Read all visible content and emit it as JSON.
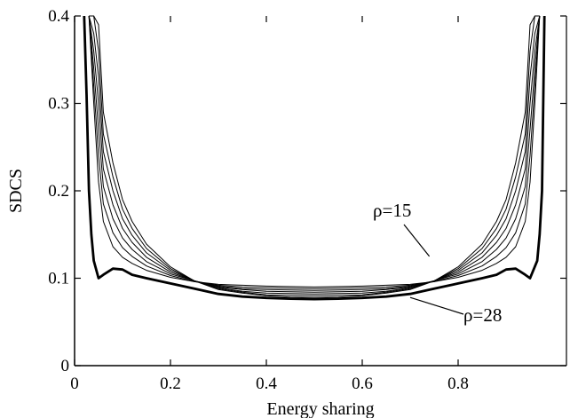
{
  "chart_data": {
    "type": "line",
    "title": "",
    "xlabel": "Energy sharing",
    "ylabel": "SDCS",
    "xlim": [
      0,
      1
    ],
    "ylim": [
      0,
      0.4
    ],
    "xticks": [
      0,
      0.2,
      0.4,
      0.6,
      0.8
    ],
    "xtick_labels": [
      "0",
      "0.2",
      "0.4",
      "0.6",
      "0.8"
    ],
    "yticks": [
      0,
      0.1,
      0.2,
      0.3,
      0.4
    ],
    "ytick_labels": [
      "0",
      "0.1",
      "0.2",
      "0.3",
      "0.4"
    ],
    "grid": false,
    "annotations": [
      {
        "text": "ρ=15",
        "points_to": {
          "x": 0.74,
          "y": 0.125
        }
      },
      {
        "text": "ρ=28",
        "points_to": {
          "x": 0.7,
          "y": 0.078
        }
      }
    ],
    "series": [
      {
        "x": [
          0.03,
          0.04,
          0.05,
          0.06,
          0.08,
          0.1,
          0.12,
          0.15,
          0.2,
          0.25,
          0.3,
          0.35,
          0.4,
          0.45,
          0.5,
          0.55,
          0.6,
          0.65,
          0.7,
          0.75,
          0.8,
          0.85,
          0.88,
          0.9,
          0.92,
          0.94,
          0.95,
          0.96,
          0.97
        ],
        "y": [
          0.4,
          0.3,
          0.21,
          0.165,
          0.136,
          0.124,
          0.117,
          0.109,
          0.101,
          0.096,
          0.093,
          0.092,
          0.091,
          0.0905,
          0.09,
          0.0905,
          0.091,
          0.092,
          0.093,
          0.096,
          0.101,
          0.109,
          0.117,
          0.124,
          0.136,
          0.165,
          0.21,
          0.3,
          0.4
        ]
      },
      {
        "x": [
          0.03,
          0.04,
          0.05,
          0.06,
          0.08,
          0.1,
          0.12,
          0.15,
          0.2,
          0.25,
          0.3,
          0.35,
          0.4,
          0.45,
          0.5,
          0.55,
          0.6,
          0.65,
          0.7,
          0.75,
          0.8,
          0.85,
          0.88,
          0.9,
          0.92,
          0.94,
          0.95,
          0.96,
          0.97
        ],
        "y": [
          0.4,
          0.32,
          0.24,
          0.185,
          0.152,
          0.135,
          0.125,
          0.114,
          0.103,
          0.096,
          0.092,
          0.09,
          0.089,
          0.0885,
          0.088,
          0.0885,
          0.089,
          0.09,
          0.092,
          0.096,
          0.103,
          0.114,
          0.125,
          0.135,
          0.152,
          0.185,
          0.24,
          0.32,
          0.4
        ]
      },
      {
        "x": [
          0.03,
          0.04,
          0.05,
          0.06,
          0.08,
          0.1,
          0.12,
          0.15,
          0.2,
          0.25,
          0.3,
          0.35,
          0.4,
          0.45,
          0.5,
          0.55,
          0.6,
          0.65,
          0.7,
          0.75,
          0.8,
          0.85,
          0.88,
          0.9,
          0.92,
          0.94,
          0.95,
          0.96,
          0.97
        ],
        "y": [
          0.4,
          0.34,
          0.27,
          0.205,
          0.168,
          0.146,
          0.133,
          0.119,
          0.105,
          0.097,
          0.091,
          0.088,
          0.087,
          0.0865,
          0.086,
          0.0865,
          0.087,
          0.088,
          0.091,
          0.097,
          0.105,
          0.119,
          0.133,
          0.146,
          0.168,
          0.205,
          0.27,
          0.34,
          0.4
        ]
      },
      {
        "x": [
          0.03,
          0.04,
          0.05,
          0.06,
          0.08,
          0.1,
          0.12,
          0.15,
          0.2,
          0.25,
          0.3,
          0.35,
          0.4,
          0.45,
          0.5,
          0.55,
          0.6,
          0.65,
          0.7,
          0.75,
          0.8,
          0.85,
          0.88,
          0.9,
          0.92,
          0.94,
          0.95,
          0.96,
          0.97
        ],
        "y": [
          0.4,
          0.36,
          0.3,
          0.225,
          0.184,
          0.157,
          0.141,
          0.124,
          0.107,
          0.097,
          0.09,
          0.087,
          0.085,
          0.0845,
          0.084,
          0.0845,
          0.085,
          0.087,
          0.09,
          0.097,
          0.107,
          0.124,
          0.141,
          0.157,
          0.184,
          0.225,
          0.3,
          0.36,
          0.4
        ]
      },
      {
        "x": [
          0.03,
          0.04,
          0.05,
          0.06,
          0.08,
          0.1,
          0.12,
          0.15,
          0.2,
          0.25,
          0.3,
          0.35,
          0.4,
          0.45,
          0.5,
          0.55,
          0.6,
          0.65,
          0.7,
          0.75,
          0.8,
          0.85,
          0.88,
          0.9,
          0.92,
          0.94,
          0.95,
          0.96,
          0.97
        ],
        "y": [
          0.4,
          0.38,
          0.33,
          0.245,
          0.2,
          0.168,
          0.149,
          0.129,
          0.109,
          0.097,
          0.089,
          0.085,
          0.083,
          0.0825,
          0.082,
          0.0825,
          0.083,
          0.085,
          0.089,
          0.097,
          0.109,
          0.129,
          0.149,
          0.168,
          0.2,
          0.245,
          0.33,
          0.38,
          0.4
        ]
      },
      {
        "x": [
          0.03,
          0.04,
          0.05,
          0.06,
          0.08,
          0.1,
          0.12,
          0.15,
          0.2,
          0.25,
          0.3,
          0.35,
          0.4,
          0.45,
          0.5,
          0.55,
          0.6,
          0.65,
          0.7,
          0.75,
          0.8,
          0.85,
          0.88,
          0.9,
          0.92,
          0.94,
          0.95,
          0.96,
          0.97
        ],
        "y": [
          0.4,
          0.4,
          0.36,
          0.265,
          0.216,
          0.179,
          0.157,
          0.134,
          0.111,
          0.097,
          0.088,
          0.084,
          0.081,
          0.0805,
          0.08,
          0.0805,
          0.081,
          0.084,
          0.088,
          0.097,
          0.111,
          0.134,
          0.157,
          0.179,
          0.216,
          0.265,
          0.36,
          0.4,
          0.4
        ]
      },
      {
        "x": [
          0.03,
          0.04,
          0.05,
          0.06,
          0.08,
          0.1,
          0.12,
          0.15,
          0.2,
          0.25,
          0.3,
          0.35,
          0.4,
          0.45,
          0.5,
          0.55,
          0.6,
          0.65,
          0.7,
          0.75,
          0.8,
          0.85,
          0.88,
          0.9,
          0.92,
          0.94,
          0.95,
          0.96,
          0.97
        ],
        "y": [
          0.4,
          0.4,
          0.39,
          0.29,
          0.232,
          0.19,
          0.165,
          0.139,
          0.113,
          0.097,
          0.087,
          0.083,
          0.08,
          0.0785,
          0.078,
          0.0785,
          0.08,
          0.083,
          0.087,
          0.097,
          0.113,
          0.139,
          0.165,
          0.19,
          0.232,
          0.29,
          0.39,
          0.4,
          0.4
        ]
      },
      {
        "x": [
          0.02,
          0.025,
          0.03,
          0.035,
          0.04,
          0.05,
          0.06,
          0.08,
          0.1,
          0.12,
          0.15,
          0.2,
          0.25,
          0.3,
          0.35,
          0.4,
          0.45,
          0.5,
          0.55,
          0.6,
          0.65,
          0.7,
          0.75,
          0.8,
          0.85,
          0.88,
          0.9,
          0.92,
          0.94,
          0.95,
          0.965,
          0.97,
          0.975,
          0.98
        ],
        "y": [
          0.4,
          0.31,
          0.2,
          0.15,
          0.12,
          0.1,
          0.104,
          0.111,
          0.11,
          0.104,
          0.1,
          0.094,
          0.088,
          0.082,
          0.079,
          0.0775,
          0.0765,
          0.076,
          0.0765,
          0.0775,
          0.079,
          0.082,
          0.088,
          0.094,
          0.1,
          0.104,
          0.11,
          0.111,
          0.104,
          0.1,
          0.12,
          0.15,
          0.2,
          0.4
        ],
        "bold": true
      }
    ]
  }
}
